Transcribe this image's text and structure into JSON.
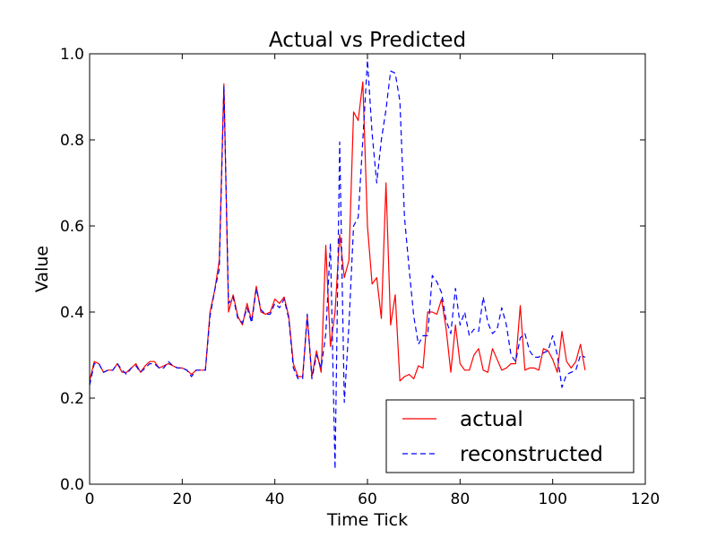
{
  "chart_data": {
    "type": "line",
    "title": "Actual vs Predicted",
    "xlabel": "Time Tick",
    "ylabel": "Value",
    "xlim": [
      0,
      120
    ],
    "ylim": [
      0,
      1.0
    ],
    "xticks": [
      0,
      20,
      40,
      60,
      80,
      100,
      120
    ],
    "xtick_labels": [
      "0",
      "20",
      "40",
      "60",
      "80",
      "100",
      "120"
    ],
    "yticks": [
      0.0,
      0.2,
      0.4,
      0.6,
      0.8,
      1.0
    ],
    "ytick_labels": [
      "0.0",
      "0.2",
      "0.4",
      "0.6",
      "0.8",
      "1.0"
    ],
    "grid": false,
    "legend_position": "lower-right",
    "series": [
      {
        "name": "actual",
        "color": "#ff0000",
        "style": "solid",
        "values": [
          0.24,
          0.285,
          0.28,
          0.26,
          0.265,
          0.265,
          0.28,
          0.26,
          0.26,
          0.27,
          0.28,
          0.26,
          0.275,
          0.285,
          0.285,
          0.27,
          0.275,
          0.28,
          0.275,
          0.27,
          0.27,
          0.265,
          0.255,
          0.265,
          0.265,
          0.265,
          0.4,
          0.45,
          0.52,
          0.93,
          0.4,
          0.44,
          0.39,
          0.37,
          0.42,
          0.38,
          0.46,
          0.4,
          0.395,
          0.4,
          0.43,
          0.42,
          0.435,
          0.39,
          0.28,
          0.25,
          0.25,
          0.39,
          0.25,
          0.31,
          0.26,
          0.555,
          0.32,
          0.4,
          0.58,
          0.48,
          0.52,
          0.865,
          0.845,
          0.935,
          0.6,
          0.465,
          0.48,
          0.385,
          0.7,
          0.37,
          0.44,
          0.24,
          0.25,
          0.255,
          0.245,
          0.275,
          0.27,
          0.4,
          0.4,
          0.395,
          0.43,
          0.36,
          0.26,
          0.37,
          0.28,
          0.265,
          0.265,
          0.3,
          0.315,
          0.265,
          0.26,
          0.315,
          0.29,
          0.265,
          0.27,
          0.28,
          0.28,
          0.415,
          0.265,
          0.27,
          0.27,
          0.265,
          0.315,
          0.31,
          0.29,
          0.26,
          0.355,
          0.285,
          0.27,
          0.285,
          0.325,
          0.265
        ]
      },
      {
        "name": "reconstructed",
        "color": "#0000ff",
        "style": "dashed",
        "values": [
          0.23,
          0.28,
          0.28,
          0.26,
          0.265,
          0.265,
          0.28,
          0.265,
          0.255,
          0.27,
          0.275,
          0.26,
          0.27,
          0.28,
          0.28,
          0.27,
          0.27,
          0.285,
          0.275,
          0.27,
          0.27,
          0.265,
          0.25,
          0.265,
          0.265,
          0.265,
          0.39,
          0.45,
          0.5,
          0.925,
          0.42,
          0.435,
          0.385,
          0.375,
          0.41,
          0.375,
          0.455,
          0.405,
          0.395,
          0.395,
          0.42,
          0.41,
          0.43,
          0.385,
          0.27,
          0.245,
          0.245,
          0.395,
          0.245,
          0.3,
          0.27,
          0.35,
          0.56,
          0.035,
          0.795,
          0.19,
          0.37,
          0.6,
          0.62,
          0.8,
          0.985,
          0.815,
          0.7,
          0.8,
          0.87,
          0.96,
          0.955,
          0.89,
          0.62,
          0.5,
          0.39,
          0.325,
          0.345,
          0.345,
          0.485,
          0.47,
          0.445,
          0.38,
          0.35,
          0.455,
          0.37,
          0.4,
          0.345,
          0.36,
          0.355,
          0.435,
          0.375,
          0.35,
          0.36,
          0.41,
          0.37,
          0.3,
          0.285,
          0.34,
          0.35,
          0.31,
          0.295,
          0.295,
          0.305,
          0.31,
          0.345,
          0.3,
          0.225,
          0.255,
          0.26,
          0.265,
          0.3,
          0.295
        ]
      }
    ]
  }
}
